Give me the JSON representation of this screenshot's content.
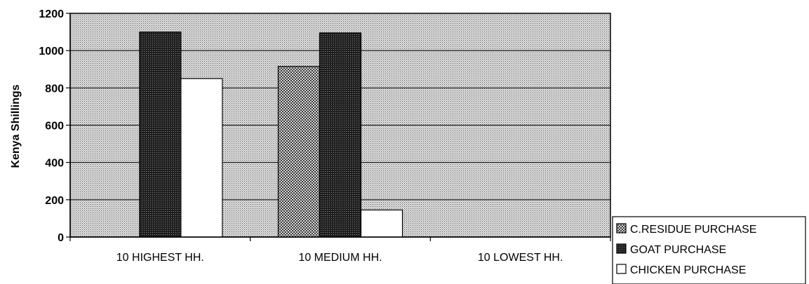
{
  "chart_data": {
    "type": "bar",
    "title": "",
    "xlabel": "",
    "ylabel": "Kenya Shillings",
    "ylim": [
      0,
      1200
    ],
    "yticks": [
      0,
      200,
      400,
      600,
      800,
      1000,
      1200
    ],
    "categories": [
      "10 HIGHEST HH.",
      "10 MEDIUM HH.",
      "10 LOWEST HH."
    ],
    "grid": true,
    "legend_position": "bottom-right",
    "series": [
      {
        "name": "C.RESIDUE PURCHASE",
        "values": [
          0,
          915,
          0
        ],
        "color": "#8a8a8a",
        "pattern": "checker"
      },
      {
        "name": "GOAT PURCHASE",
        "values": [
          1100,
          1095,
          0
        ],
        "color": "#333333",
        "pattern": "dense"
      },
      {
        "name": "CHICKEN PURCHASE",
        "values": [
          850,
          145,
          0
        ],
        "color": "#ffffff",
        "pattern": "none"
      }
    ],
    "plot_background": "#c8c8c8"
  }
}
